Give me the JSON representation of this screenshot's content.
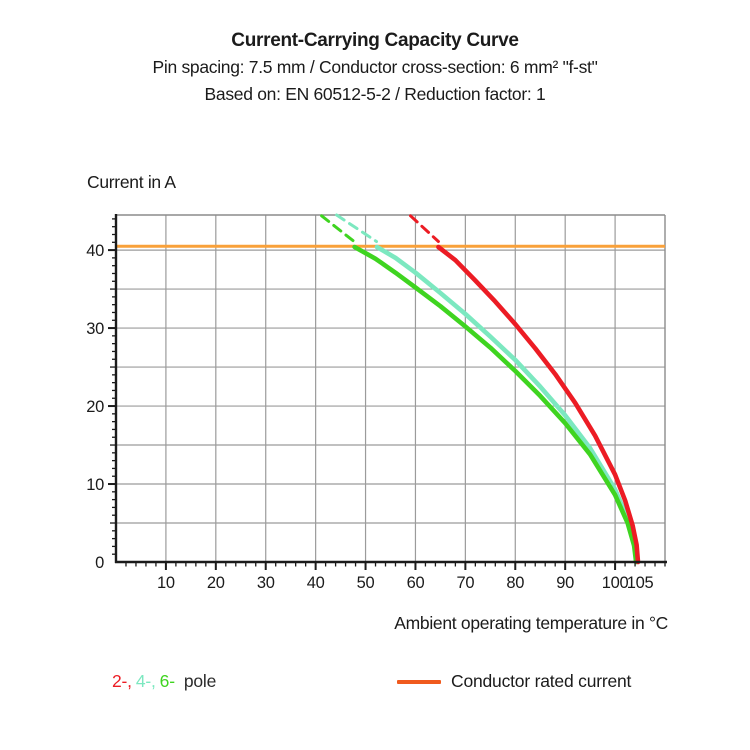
{
  "chart_data": {
    "type": "line",
    "title": "Current-Carrying Capacity Curve",
    "subtitle": "Pin spacing: 7.5 mm / Conductor cross-section: 6 mm² \"f-st\"",
    "subtitle2": "Based on: EN 60512-5-2 / Reduction factor: 1",
    "ylabel": "Current in A",
    "xlabel": "Ambient operating temperature in °C",
    "xlim": [
      0,
      110
    ],
    "ylim": [
      0,
      44.5
    ],
    "x_tick_labels": [
      10,
      20,
      30,
      40,
      50,
      60,
      70,
      80,
      90,
      100,
      105
    ],
    "y_tick_labels": [
      0,
      10,
      20,
      30,
      40
    ],
    "x_grid_step": 10,
    "y_grid_step": 5,
    "x_minor_step": 2,
    "y_minor_step": 1,
    "grid": true,
    "frame_color": "#8c8c8c",
    "grid_color": "#9b9b9b",
    "axis_color": "#1b1b1b",
    "rated_line": {
      "y": 40.5,
      "color": "#F9A13A"
    },
    "series": [
      {
        "name": "2-pole",
        "color": "#EC1C24",
        "dashed": [
          [
            59.0,
            44.4
          ],
          [
            64.6,
            41.1
          ]
        ],
        "solid": [
          [
            64.6,
            40.4
          ],
          [
            68,
            38.7
          ],
          [
            72,
            36.1
          ],
          [
            76,
            33.4
          ],
          [
            80,
            30.5
          ],
          [
            84,
            27.4
          ],
          [
            88,
            24.1
          ],
          [
            92,
            20.4
          ],
          [
            96,
            16.2
          ],
          [
            100,
            11.2
          ],
          [
            102,
            7.9
          ],
          [
            103.5,
            4.7
          ],
          [
            104.3,
            2.2
          ],
          [
            104.6,
            0
          ]
        ]
      },
      {
        "name": "4-pole",
        "color": "#7CE8C0",
        "dashed": [
          [
            44.2,
            44.5
          ],
          [
            52.2,
            41.1
          ]
        ],
        "solid": [
          [
            52.3,
            40.4
          ],
          [
            56,
            39.0
          ],
          [
            60,
            37.1
          ],
          [
            65,
            34.5
          ],
          [
            70,
            31.8
          ],
          [
            75,
            28.9
          ],
          [
            80,
            25.9
          ],
          [
            85,
            22.5
          ],
          [
            90,
            18.8
          ],
          [
            95,
            14.6
          ],
          [
            100,
            9.3
          ],
          [
            102.5,
            5.6
          ],
          [
            104,
            2.2
          ],
          [
            104.4,
            0
          ]
        ]
      },
      {
        "name": "6-pole",
        "color": "#3FD420",
        "dashed": [
          [
            41.2,
            44.4
          ],
          [
            47.7,
            41.1
          ]
        ],
        "solid": [
          [
            47.8,
            40.4
          ],
          [
            52,
            38.9
          ],
          [
            56,
            37.1
          ],
          [
            60,
            35.2
          ],
          [
            65,
            32.8
          ],
          [
            70,
            30.2
          ],
          [
            75,
            27.5
          ],
          [
            80,
            24.5
          ],
          [
            85,
            21.3
          ],
          [
            90,
            17.8
          ],
          [
            95,
            13.8
          ],
          [
            100,
            8.6
          ],
          [
            102.5,
            5.0
          ],
          [
            103.8,
            2.1
          ],
          [
            104.2,
            0
          ]
        ]
      }
    ],
    "legend": {
      "pole_tokens": [
        {
          "text": "2-,",
          "color": "#EC1C24"
        },
        {
          "text": "4-,",
          "color": "#7CE8C0"
        },
        {
          "text": "6-",
          "color": "#3FD420"
        }
      ],
      "pole_suffix": "pole",
      "rated_label": "Conductor rated current",
      "rated_swatch_color": "#F05A1D",
      "position": "bottom"
    }
  }
}
